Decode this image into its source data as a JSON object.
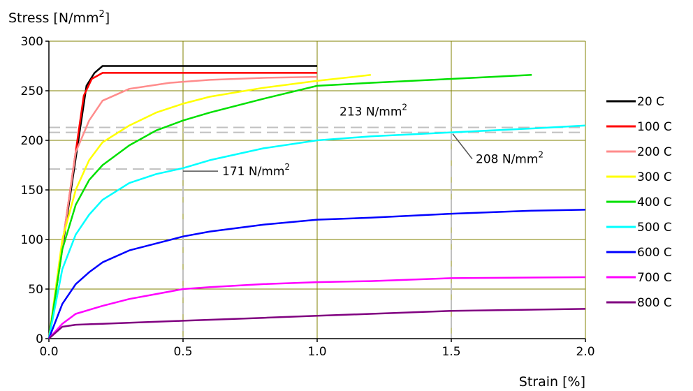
{
  "chart_data": {
    "type": "line",
    "ylabel": "Stress [N/mm",
    "ylabel_sup": "2",
    "ylabel_end": "]",
    "xlabel": "Strain [%]",
    "xlim": [
      0,
      2
    ],
    "ylim": [
      0,
      300
    ],
    "x_ticks": [
      0,
      0.5,
      1,
      1.5,
      2
    ],
    "x_tick_labels": [
      "0.0",
      "0.5",
      "1.0",
      "1.5",
      "2.0"
    ],
    "y_ticks": [
      0,
      50,
      100,
      150,
      200,
      250,
      300
    ],
    "y_tick_labels": [
      "0",
      "50",
      "100",
      "150",
      "200",
      "250",
      "300"
    ],
    "grid": true,
    "legend_position": "right",
    "series": [
      {
        "name": "20 C",
        "color": "#000000",
        "points": [
          [
            0,
            0
          ],
          [
            0.14,
            255
          ],
          [
            0.17,
            268
          ],
          [
            0.2,
            275
          ],
          [
            1.0,
            275
          ]
        ]
      },
      {
        "name": "100 C",
        "color": "#ff0000",
        "points": [
          [
            0,
            0
          ],
          [
            0.13,
            245
          ],
          [
            0.16,
            262
          ],
          [
            0.2,
            268
          ],
          [
            1.0,
            268
          ]
        ]
      },
      {
        "name": "200 C",
        "color": "#ff8c8c",
        "points": [
          [
            0,
            0
          ],
          [
            0.1,
            188
          ],
          [
            0.15,
            220
          ],
          [
            0.2,
            240
          ],
          [
            0.3,
            252
          ],
          [
            0.45,
            258
          ],
          [
            0.6,
            261
          ],
          [
            0.8,
            263
          ],
          [
            1.0,
            264
          ]
        ]
      },
      {
        "name": "300 C",
        "color": "#ffff00",
        "points": [
          [
            0,
            0
          ],
          [
            0.05,
            100
          ],
          [
            0.1,
            150
          ],
          [
            0.15,
            180
          ],
          [
            0.2,
            198
          ],
          [
            0.3,
            215
          ],
          [
            0.4,
            228
          ],
          [
            0.5,
            237
          ],
          [
            0.6,
            244
          ],
          [
            0.8,
            253
          ],
          [
            1.0,
            260
          ],
          [
            1.2,
            266
          ]
        ]
      },
      {
        "name": "400 C",
        "color": "#00e000",
        "points": [
          [
            0,
            0
          ],
          [
            0.05,
            90
          ],
          [
            0.1,
            135
          ],
          [
            0.15,
            160
          ],
          [
            0.2,
            175
          ],
          [
            0.3,
            195
          ],
          [
            0.4,
            210
          ],
          [
            0.5,
            220
          ],
          [
            0.6,
            228
          ],
          [
            0.8,
            242
          ],
          [
            1.0,
            255
          ],
          [
            1.2,
            258
          ],
          [
            1.5,
            262
          ],
          [
            1.8,
            266
          ]
        ]
      },
      {
        "name": "500 C",
        "color": "#00ffff",
        "points": [
          [
            0,
            0
          ],
          [
            0.05,
            70
          ],
          [
            0.1,
            105
          ],
          [
            0.15,
            125
          ],
          [
            0.2,
            140
          ],
          [
            0.3,
            157
          ],
          [
            0.4,
            166
          ],
          [
            0.5,
            172
          ],
          [
            0.6,
            180
          ],
          [
            0.8,
            192
          ],
          [
            1.0,
            200
          ],
          [
            1.2,
            204
          ],
          [
            1.5,
            208
          ],
          [
            1.8,
            212
          ],
          [
            2.0,
            215
          ]
        ]
      },
      {
        "name": "600 C",
        "color": "#0000ff",
        "points": [
          [
            0,
            0
          ],
          [
            0.05,
            35
          ],
          [
            0.1,
            55
          ],
          [
            0.15,
            67
          ],
          [
            0.2,
            77
          ],
          [
            0.3,
            89
          ],
          [
            0.4,
            96
          ],
          [
            0.5,
            103
          ],
          [
            0.6,
            108
          ],
          [
            0.8,
            115
          ],
          [
            1.0,
            120
          ],
          [
            1.2,
            122
          ],
          [
            1.5,
            126
          ],
          [
            1.8,
            129
          ],
          [
            2.0,
            130
          ]
        ]
      },
      {
        "name": "700 C",
        "color": "#ff00ff",
        "points": [
          [
            0,
            0
          ],
          [
            0.05,
            15
          ],
          [
            0.1,
            25
          ],
          [
            0.2,
            33
          ],
          [
            0.3,
            40
          ],
          [
            0.4,
            45
          ],
          [
            0.5,
            50
          ],
          [
            0.6,
            52
          ],
          [
            0.8,
            55
          ],
          [
            1.0,
            57
          ],
          [
            1.2,
            58
          ],
          [
            1.5,
            61
          ],
          [
            2.0,
            62
          ]
        ]
      },
      {
        "name": "800 C",
        "color": "#800080",
        "points": [
          [
            0,
            0
          ],
          [
            0.05,
            12
          ],
          [
            0.1,
            14
          ],
          [
            0.2,
            15
          ],
          [
            0.3,
            16
          ],
          [
            0.5,
            18
          ],
          [
            0.8,
            21
          ],
          [
            1.0,
            23
          ],
          [
            1.2,
            25
          ],
          [
            1.5,
            28
          ],
          [
            2.0,
            30
          ]
        ]
      }
    ],
    "reference_lines": [
      {
        "y": 171,
        "x_end": 0.5,
        "color": "#c0c0c0"
      },
      {
        "y": 208,
        "x_end": 2.0,
        "color": "#c0c0c0"
      },
      {
        "y": 213,
        "x_end": 2.0,
        "color": "#c0c0c0"
      }
    ],
    "annotations": [
      {
        "text": "171 N/mm",
        "sup": "2",
        "point": [
          0.5,
          171
        ]
      },
      {
        "text": "213 N/mm",
        "sup": "2",
        "point": [
          1.0,
          213
        ]
      },
      {
        "text": "208 N/mm",
        "sup": "2",
        "point": [
          1.5,
          208
        ]
      }
    ]
  }
}
